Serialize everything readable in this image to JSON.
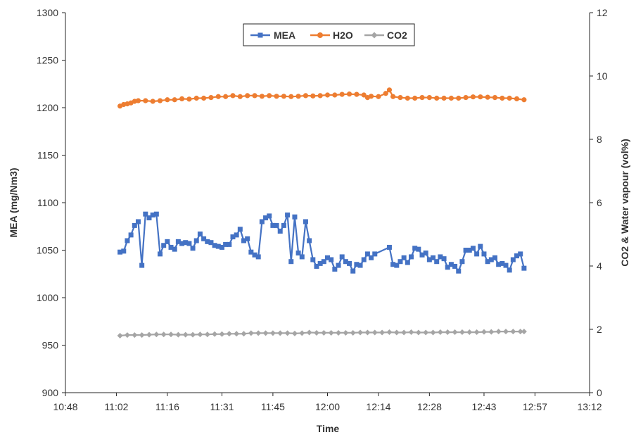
{
  "chart_data": {
    "type": "line",
    "xlabel": "Time",
    "ylabel": "MEA (mg/Nm3)",
    "y2label": "CO2 & Water vapour (vol%)",
    "x_ticks": [
      "10:48",
      "11:02",
      "11:16",
      "11:31",
      "11:45",
      "12:00",
      "12:14",
      "12:28",
      "12:43",
      "12:57",
      "13:12"
    ],
    "xlim": [
      "10:48",
      "13:12"
    ],
    "ylim": [
      900,
      1300
    ],
    "y_ticks": [
      900,
      950,
      1000,
      1050,
      1100,
      1150,
      1200,
      1250,
      1300
    ],
    "y2lim": [
      0,
      12
    ],
    "y2_ticks": [
      0,
      2,
      4,
      6,
      8,
      10,
      12
    ],
    "grid": false,
    "legend": {
      "position": "top-center",
      "entries": [
        "MEA",
        "H2O",
        "CO2"
      ]
    },
    "colors": {
      "MEA": "#4472C4",
      "H2O": "#ED7D31",
      "CO2": "#A5A5A5"
    },
    "series": [
      {
        "name": "MEA",
        "axis": "left",
        "marker": "square",
        "points": [
          [
            "11:03",
            1048
          ],
          [
            "11:04",
            1049
          ],
          [
            "11:05",
            1060
          ],
          [
            "11:06",
            1066
          ],
          [
            "11:07",
            1076
          ],
          [
            "11:08",
            1080
          ],
          [
            "11:09",
            1034
          ],
          [
            "11:10",
            1088
          ],
          [
            "11:11",
            1084
          ],
          [
            "11:12",
            1087
          ],
          [
            "11:13",
            1088
          ],
          [
            "11:14",
            1046
          ],
          [
            "11:15",
            1055
          ],
          [
            "11:16",
            1059
          ],
          [
            "11:17",
            1053
          ],
          [
            "11:18",
            1051
          ],
          [
            "11:19",
            1059
          ],
          [
            "11:20",
            1057
          ],
          [
            "11:21",
            1058
          ],
          [
            "11:22",
            1057
          ],
          [
            "11:23",
            1052
          ],
          [
            "11:24",
            1060
          ],
          [
            "11:25",
            1067
          ],
          [
            "11:26",
            1062
          ],
          [
            "11:27",
            1059
          ],
          [
            "11:28",
            1058
          ],
          [
            "11:29",
            1055
          ],
          [
            "11:30",
            1054
          ],
          [
            "11:31",
            1053
          ],
          [
            "11:32",
            1056
          ],
          [
            "11:33",
            1056
          ],
          [
            "11:34",
            1064
          ],
          [
            "11:35",
            1066
          ],
          [
            "11:36",
            1072
          ],
          [
            "11:37",
            1060
          ],
          [
            "11:38",
            1062
          ],
          [
            "11:39",
            1048
          ],
          [
            "11:40",
            1045
          ],
          [
            "11:41",
            1043
          ],
          [
            "11:42",
            1080
          ],
          [
            "11:43",
            1084
          ],
          [
            "11:44",
            1086
          ],
          [
            "11:45",
            1076
          ],
          [
            "11:46",
            1076
          ],
          [
            "11:47",
            1070
          ],
          [
            "11:48",
            1076
          ],
          [
            "11:49",
            1087
          ],
          [
            "11:50",
            1038
          ],
          [
            "11:51",
            1085
          ],
          [
            "11:52",
            1047
          ],
          [
            "11:53",
            1043
          ],
          [
            "11:54",
            1080
          ],
          [
            "11:55",
            1060
          ],
          [
            "11:56",
            1040
          ],
          [
            "11:57",
            1033
          ],
          [
            "11:58",
            1036
          ],
          [
            "11:59",
            1038
          ],
          [
            "12:00",
            1042
          ],
          [
            "12:01",
            1040
          ],
          [
            "12:02",
            1030
          ],
          [
            "12:03",
            1034
          ],
          [
            "12:04",
            1043
          ],
          [
            "12:05",
            1038
          ],
          [
            "12:06",
            1036
          ],
          [
            "12:07",
            1028
          ],
          [
            "12:08",
            1035
          ],
          [
            "12:09",
            1034
          ],
          [
            "12:10",
            1040
          ],
          [
            "12:11",
            1046
          ],
          [
            "12:12",
            1042
          ],
          [
            "12:13",
            1046
          ],
          [
            "12:17",
            1053
          ],
          [
            "12:18",
            1035
          ],
          [
            "12:19",
            1034
          ],
          [
            "12:20",
            1038
          ],
          [
            "12:21",
            1042
          ],
          [
            "12:22",
            1037
          ],
          [
            "12:23",
            1043
          ],
          [
            "12:24",
            1052
          ],
          [
            "12:25",
            1051
          ],
          [
            "12:26",
            1045
          ],
          [
            "12:27",
            1047
          ],
          [
            "12:28",
            1040
          ],
          [
            "12:29",
            1042
          ],
          [
            "12:30",
            1038
          ],
          [
            "12:31",
            1043
          ],
          [
            "12:32",
            1041
          ],
          [
            "12:33",
            1032
          ],
          [
            "12:34",
            1035
          ],
          [
            "12:35",
            1033
          ],
          [
            "12:36",
            1028
          ],
          [
            "12:37",
            1038
          ],
          [
            "12:38",
            1050
          ],
          [
            "12:39",
            1050
          ],
          [
            "12:40",
            1052
          ],
          [
            "12:41",
            1046
          ],
          [
            "12:42",
            1054
          ],
          [
            "12:43",
            1046
          ],
          [
            "12:44",
            1038
          ],
          [
            "12:45",
            1040
          ],
          [
            "12:46",
            1042
          ],
          [
            "12:47",
            1035
          ],
          [
            "12:48",
            1036
          ],
          [
            "12:49",
            1034
          ],
          [
            "12:50",
            1029
          ],
          [
            "12:51",
            1040
          ],
          [
            "12:52",
            1044
          ],
          [
            "12:53",
            1046
          ],
          [
            "12:54",
            1031
          ]
        ]
      },
      {
        "name": "H2O",
        "axis": "right",
        "marker": "circle",
        "points": [
          [
            "11:03",
            9.05
          ],
          [
            "11:04",
            9.1
          ],
          [
            "11:05",
            9.12
          ],
          [
            "11:06",
            9.15
          ],
          [
            "11:07",
            9.2
          ],
          [
            "11:08",
            9.22
          ],
          [
            "11:10",
            9.22
          ],
          [
            "11:12",
            9.2
          ],
          [
            "11:14",
            9.22
          ],
          [
            "11:16",
            9.25
          ],
          [
            "11:18",
            9.25
          ],
          [
            "11:20",
            9.28
          ],
          [
            "11:22",
            9.27
          ],
          [
            "11:24",
            9.3
          ],
          [
            "11:26",
            9.3
          ],
          [
            "11:28",
            9.32
          ],
          [
            "11:30",
            9.35
          ],
          [
            "11:32",
            9.35
          ],
          [
            "11:34",
            9.38
          ],
          [
            "11:36",
            9.35
          ],
          [
            "11:38",
            9.38
          ],
          [
            "11:40",
            9.38
          ],
          [
            "11:42",
            9.36
          ],
          [
            "11:44",
            9.38
          ],
          [
            "11:46",
            9.36
          ],
          [
            "11:48",
            9.36
          ],
          [
            "11:50",
            9.35
          ],
          [
            "11:52",
            9.36
          ],
          [
            "11:54",
            9.38
          ],
          [
            "11:56",
            9.37
          ],
          [
            "11:58",
            9.38
          ],
          [
            "12:00",
            9.4
          ],
          [
            "12:02",
            9.4
          ],
          [
            "12:04",
            9.42
          ],
          [
            "12:06",
            9.43
          ],
          [
            "12:08",
            9.42
          ],
          [
            "12:10",
            9.4
          ],
          [
            "12:11",
            9.32
          ],
          [
            "12:12",
            9.36
          ],
          [
            "12:14",
            9.35
          ],
          [
            "12:16",
            9.45
          ],
          [
            "12:17",
            9.56
          ],
          [
            "12:18",
            9.35
          ],
          [
            "12:20",
            9.32
          ],
          [
            "12:22",
            9.3
          ],
          [
            "12:24",
            9.3
          ],
          [
            "12:26",
            9.32
          ],
          [
            "12:28",
            9.32
          ],
          [
            "12:30",
            9.3
          ],
          [
            "12:32",
            9.3
          ],
          [
            "12:34",
            9.3
          ],
          [
            "12:36",
            9.3
          ],
          [
            "12:38",
            9.32
          ],
          [
            "12:40",
            9.34
          ],
          [
            "12:42",
            9.34
          ],
          [
            "12:44",
            9.33
          ],
          [
            "12:46",
            9.32
          ],
          [
            "12:48",
            9.3
          ],
          [
            "12:50",
            9.3
          ],
          [
            "12:52",
            9.28
          ],
          [
            "12:54",
            9.25
          ]
        ]
      },
      {
        "name": "CO2",
        "axis": "right",
        "marker": "diamond",
        "points": [
          [
            "11:03",
            1.8
          ],
          [
            "11:05",
            1.82
          ],
          [
            "11:07",
            1.82
          ],
          [
            "11:09",
            1.82
          ],
          [
            "11:11",
            1.83
          ],
          [
            "11:13",
            1.84
          ],
          [
            "11:15",
            1.84
          ],
          [
            "11:17",
            1.84
          ],
          [
            "11:19",
            1.83
          ],
          [
            "11:21",
            1.83
          ],
          [
            "11:23",
            1.83
          ],
          [
            "11:25",
            1.84
          ],
          [
            "11:27",
            1.84
          ],
          [
            "11:29",
            1.85
          ],
          [
            "11:31",
            1.85
          ],
          [
            "11:33",
            1.86
          ],
          [
            "11:35",
            1.86
          ],
          [
            "11:37",
            1.86
          ],
          [
            "11:39",
            1.88
          ],
          [
            "11:41",
            1.88
          ],
          [
            "11:43",
            1.88
          ],
          [
            "11:45",
            1.88
          ],
          [
            "11:47",
            1.88
          ],
          [
            "11:49",
            1.88
          ],
          [
            "11:51",
            1.87
          ],
          [
            "11:53",
            1.88
          ],
          [
            "11:55",
            1.9
          ],
          [
            "11:57",
            1.89
          ],
          [
            "11:59",
            1.89
          ],
          [
            "12:01",
            1.89
          ],
          [
            "12:03",
            1.89
          ],
          [
            "12:05",
            1.89
          ],
          [
            "12:07",
            1.89
          ],
          [
            "12:09",
            1.9
          ],
          [
            "12:11",
            1.9
          ],
          [
            "12:13",
            1.9
          ],
          [
            "12:15",
            1.9
          ],
          [
            "12:17",
            1.91
          ],
          [
            "12:19",
            1.9
          ],
          [
            "12:21",
            1.9
          ],
          [
            "12:23",
            1.91
          ],
          [
            "12:25",
            1.9
          ],
          [
            "12:27",
            1.9
          ],
          [
            "12:29",
            1.9
          ],
          [
            "12:31",
            1.91
          ],
          [
            "12:33",
            1.91
          ],
          [
            "12:35",
            1.91
          ],
          [
            "12:37",
            1.91
          ],
          [
            "12:39",
            1.91
          ],
          [
            "12:41",
            1.91
          ],
          [
            "12:43",
            1.92
          ],
          [
            "12:45",
            1.92
          ],
          [
            "12:47",
            1.93
          ],
          [
            "12:49",
            1.93
          ],
          [
            "12:51",
            1.93
          ],
          [
            "12:53",
            1.93
          ],
          [
            "12:54",
            1.93
          ]
        ]
      }
    ]
  }
}
